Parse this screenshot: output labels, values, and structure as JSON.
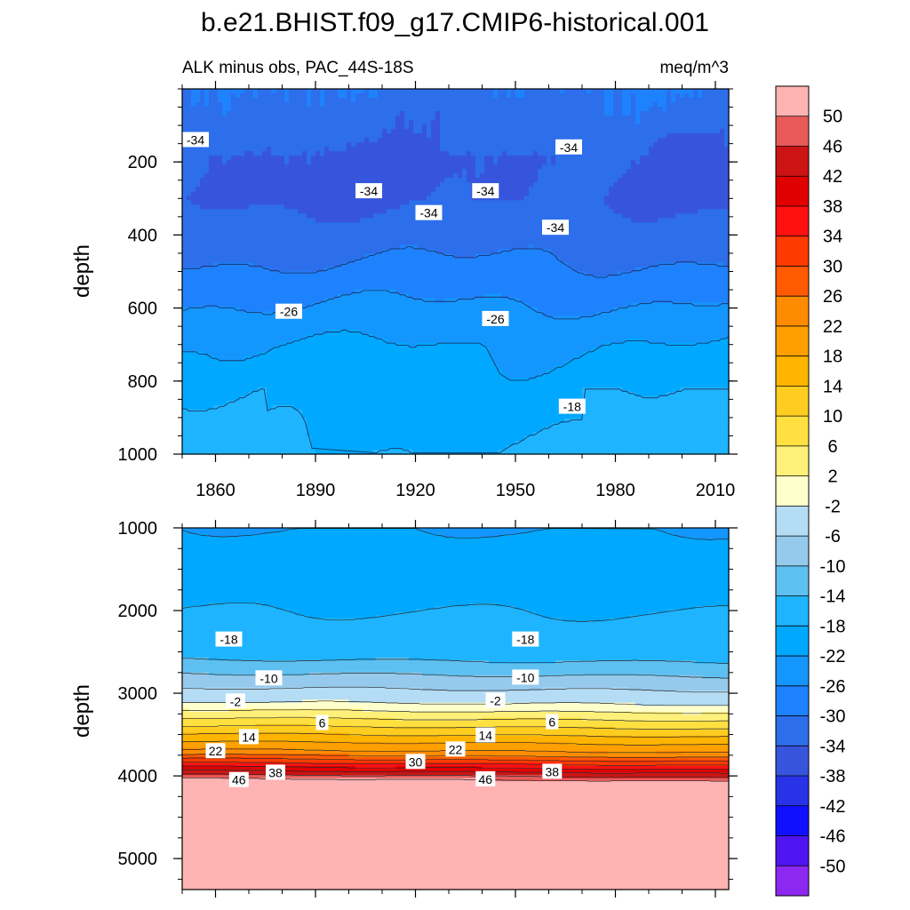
{
  "figure": {
    "title": "b.e21.BHIST.f09_g17.CMIP6-historical.001",
    "subtitle_left": "ALK minus obs, PAC_44S-18S",
    "subtitle_right": "meq/m^3"
  },
  "chart_data": [
    {
      "type": "heatmap",
      "panel": "upper",
      "ylabel": "depth",
      "x_ticks": [
        "1860",
        "1890",
        "1920",
        "1950",
        "1980",
        "2010"
      ],
      "x_tick_values": [
        1860,
        1890,
        1920,
        1950,
        1980,
        2010
      ],
      "xlim": [
        1850,
        2014
      ],
      "y_ticks": [
        "200",
        "400",
        "600",
        "800",
        "1000"
      ],
      "y_tick_values": [
        200,
        400,
        600,
        800,
        1000
      ],
      "ylim": [
        0,
        1000
      ],
      "y_reversed": true,
      "contour_labels": [
        {
          "text": "-34",
          "x": 1854,
          "y": 140
        },
        {
          "text": "-34",
          "x": 1906,
          "y": 280
        },
        {
          "text": "-34",
          "x": 1924,
          "y": 340
        },
        {
          "text": "-34",
          "x": 1941,
          "y": 280
        },
        {
          "text": "-34",
          "x": 1966,
          "y": 160
        },
        {
          "text": "-34",
          "x": 1962,
          "y": 380
        },
        {
          "text": "-26",
          "x": 1882,
          "y": 610
        },
        {
          "text": "-26",
          "x": 1944,
          "y": 630
        },
        {
          "text": "-18",
          "x": 1967,
          "y": 870
        }
      ]
    },
    {
      "type": "heatmap",
      "panel": "lower",
      "ylabel": "depth",
      "x_tick_values": [
        1860,
        1890,
        1920,
        1950,
        1980,
        2010
      ],
      "xlim": [
        1850,
        2014
      ],
      "y_ticks": [
        "1000",
        "2000",
        "3000",
        "4000",
        "5000"
      ],
      "y_tick_values": [
        1000,
        2000,
        3000,
        4000,
        5000
      ],
      "ylim": [
        1000,
        5375
      ],
      "y_reversed": true,
      "contour_labels": [
        {
          "text": "-18",
          "x": 1864,
          "y": 2350
        },
        {
          "text": "-18",
          "x": 1953,
          "y": 2350
        },
        {
          "text": "-10",
          "x": 1876,
          "y": 2820
        },
        {
          "text": "-10",
          "x": 1953,
          "y": 2810
        },
        {
          "text": "-2",
          "x": 1866,
          "y": 3100
        },
        {
          "text": "-2",
          "x": 1944,
          "y": 3090
        },
        {
          "text": "6",
          "x": 1892,
          "y": 3360
        },
        {
          "text": "6",
          "x": 1961,
          "y": 3350
        },
        {
          "text": "14",
          "x": 1870,
          "y": 3530
        },
        {
          "text": "14",
          "x": 1941,
          "y": 3510
        },
        {
          "text": "22",
          "x": 1860,
          "y": 3700
        },
        {
          "text": "22",
          "x": 1932,
          "y": 3680
        },
        {
          "text": "30",
          "x": 1920,
          "y": 3830
        },
        {
          "text": "38",
          "x": 1878,
          "y": 3960
        },
        {
          "text": "38",
          "x": 1961,
          "y": 3950
        },
        {
          "text": "46",
          "x": 1867,
          "y": 4050
        },
        {
          "text": "46",
          "x": 1941,
          "y": 4040
        }
      ]
    },
    {
      "type": "colorbar",
      "labels": [
        "50",
        "46",
        "42",
        "38",
        "34",
        "30",
        "26",
        "22",
        "18",
        "14",
        "10",
        "6",
        "2",
        "-2",
        "-6",
        "-10",
        "-14",
        "-18",
        "-22",
        "-26",
        "-30",
        "-34",
        "-38",
        "-42",
        "-46",
        "-50"
      ],
      "colors": [
        "#ffb3b3",
        "#e85a5a",
        "#cc1414",
        "#e00000",
        "#ff1010",
        "#ff3a00",
        "#ff5a00",
        "#ff8c00",
        "#ffa000",
        "#ffb400",
        "#ffcc20",
        "#ffe040",
        "#fff07a",
        "#ffffcc",
        "#b4dcf4",
        "#96caec",
        "#5ec0f0",
        "#1eb4ff",
        "#00a8ff",
        "#1496ff",
        "#1e82ff",
        "#2d6eeb",
        "#3755dc",
        "#2832e6",
        "#1010ff",
        "#5014f0",
        "#8c28f0"
      ]
    }
  ]
}
